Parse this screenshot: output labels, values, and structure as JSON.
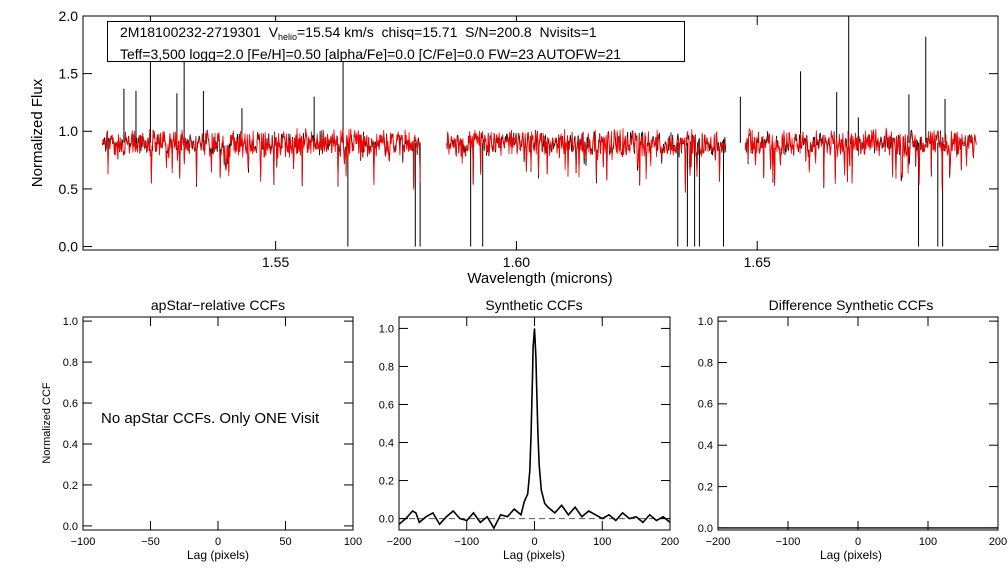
{
  "colors": {
    "observed": "#000000",
    "model": "#ff0000",
    "axis": "#000000",
    "dash": "#555555"
  },
  "info": {
    "star_id": "2M18100232-2719301",
    "vhelio_label": "V",
    "vhelio_sub": "helio",
    "vhelio_value": "=15.54 km/s",
    "chisq": "chisq=15.71",
    "snr": "S/N=200.8",
    "nvisits": "Nvisits=1",
    "params": "Teff=3,500 logg=2.0 [Fe/H]=0.50 [alpha/Fe]=0.0 [C/Fe]=0.0 FW=23 AUTOFW=21"
  },
  "panel_note": "No apStar CCFs.  Only ONE Visit",
  "chart_data": [
    {
      "id": "spectrum",
      "type": "line",
      "title": "",
      "xlabel": "Wavelength (microns)",
      "ylabel": "Normalized Flux",
      "xlim": [
        1.51,
        1.7
      ],
      "ylim": [
        -0.03,
        2.0
      ],
      "xticks": [
        1.55,
        1.6,
        1.65
      ],
      "xtick_labels": [
        "1.55",
        "1.60",
        "1.65"
      ],
      "yticks": [
        0.0,
        0.5,
        1.0,
        1.5,
        2.0
      ],
      "ytick_labels": [
        "0.0",
        "0.5",
        "1.0",
        "1.5",
        "2.0"
      ],
      "chips": [
        [
          1.514,
          1.58
        ],
        [
          1.5855,
          1.6435
        ],
        [
          1.6475,
          1.6955
        ]
      ],
      "spikes": [
        [
          1.5185,
          1.37
        ],
        [
          1.521,
          1.35
        ],
        [
          1.524,
          2.0
        ],
        [
          1.5295,
          1.33
        ],
        [
          1.531,
          1.7
        ],
        [
          1.535,
          1.35
        ],
        [
          1.543,
          1.2
        ],
        [
          1.558,
          1.3
        ],
        [
          1.564,
          1.72
        ],
        [
          1.6465,
          1.3
        ],
        [
          1.659,
          1.52
        ],
        [
          1.6665,
          1.34
        ],
        [
          1.669,
          2.0
        ],
        [
          1.671,
          1.12
        ],
        [
          1.6815,
          1.32
        ],
        [
          1.685,
          1.82
        ],
        [
          1.689,
          1.28
        ]
      ],
      "dips": [
        [
          1.565,
          0.0
        ],
        [
          1.579,
          0.0
        ],
        [
          1.58,
          0.0
        ],
        [
          1.5905,
          0.0
        ],
        [
          1.593,
          0.0
        ],
        [
          1.6335,
          0.0
        ],
        [
          1.6355,
          0.0
        ],
        [
          1.637,
          0.0
        ],
        [
          1.638,
          0.0
        ],
        [
          1.643,
          0.0
        ],
        [
          1.6835,
          0.0
        ],
        [
          1.6875,
          0.0
        ],
        [
          1.6885,
          0.0
        ]
      ],
      "series": [
        {
          "name": "Observed spectrum",
          "color": "#000000"
        },
        {
          "name": "Model spectrum",
          "color": "#ff0000"
        }
      ]
    },
    {
      "id": "apstar_ccf",
      "type": "line",
      "title": "apStar−relative CCFs",
      "xlabel": "Lag (pixels)",
      "ylabel": "Normalized CCF",
      "xlim": [
        -100,
        100
      ],
      "ylim": [
        -0.02,
        1.02
      ],
      "xticks": [
        -100,
        -50,
        0,
        50,
        100
      ],
      "xtick_labels": [
        "−100",
        "−50",
        "0",
        "50",
        "100"
      ],
      "yticks": [
        0.0,
        0.2,
        0.4,
        0.6,
        0.8,
        1.0
      ],
      "ytick_labels": [
        "0.0",
        "0.2",
        "0.4",
        "0.6",
        "0.8",
        "1.0"
      ],
      "series": []
    },
    {
      "id": "synthetic_ccf",
      "type": "line",
      "title": "Synthetic CCFs",
      "xlabel": "Lag (pixels)",
      "ylabel": "",
      "xlim": [
        -200,
        200
      ],
      "ylim": [
        -0.06,
        1.06
      ],
      "xticks": [
        -200,
        -100,
        0,
        100,
        200
      ],
      "xtick_labels": [
        "−200",
        "−100",
        "0",
        "100",
        "200"
      ],
      "yticks": [
        0.0,
        0.2,
        0.4,
        0.6,
        0.8,
        1.0
      ],
      "ytick_labels": [
        "0.0",
        "0.2",
        "0.4",
        "0.6",
        "0.8",
        "1.0"
      ],
      "baseline": 0.0,
      "series": [
        {
          "name": "Synthetic CCF",
          "color": "#000000",
          "x": [
            -200,
            -190,
            -180,
            -175,
            -170,
            -160,
            -150,
            -140,
            -130,
            -120,
            -110,
            -100,
            -90,
            -80,
            -70,
            -60,
            -50,
            -40,
            -30,
            -20,
            -15,
            -10,
            -7,
            -5,
            -3,
            -2,
            0,
            2,
            3,
            5,
            7,
            10,
            15,
            20,
            30,
            40,
            50,
            60,
            70,
            80,
            90,
            100,
            110,
            120,
            130,
            140,
            150,
            160,
            170,
            180,
            190,
            200
          ],
          "y": [
            -0.03,
            0.0,
            0.04,
            0.03,
            -0.02,
            0.01,
            0.03,
            -0.03,
            0.01,
            0.04,
            0.0,
            -0.01,
            0.03,
            -0.02,
            0.01,
            -0.05,
            0.02,
            0.01,
            0.05,
            0.02,
            0.09,
            0.13,
            0.25,
            0.45,
            0.75,
            0.9,
            1.0,
            0.85,
            0.72,
            0.45,
            0.28,
            0.15,
            0.08,
            0.06,
            0.03,
            0.07,
            0.02,
            0.06,
            0.01,
            0.04,
            0.02,
            0.0,
            0.02,
            -0.01,
            0.03,
            0.0,
            0.01,
            -0.02,
            0.02,
            -0.01,
            0.01,
            -0.02
          ]
        }
      ]
    },
    {
      "id": "difference_ccf",
      "type": "line",
      "title": "Difference Synthetic CCFs",
      "xlabel": "Lag (pixels)",
      "ylabel": "",
      "xlim": [
        -200,
        200
      ],
      "ylim": [
        -0.01,
        1.02
      ],
      "xticks": [
        -200,
        -100,
        0,
        100,
        200
      ],
      "xtick_labels": [
        "−200",
        "−100",
        "0",
        "100",
        "200"
      ],
      "yticks": [
        0.0,
        0.2,
        0.4,
        0.6,
        0.8,
        1.0
      ],
      "ytick_labels": [
        "0.0",
        "0.2",
        "0.4",
        "0.6",
        "0.8",
        "1.0"
      ],
      "series": [
        {
          "name": "Difference CCF",
          "color": "#000000",
          "x": [
            -200,
            200
          ],
          "y": [
            0.0,
            0.0
          ]
        }
      ]
    }
  ]
}
